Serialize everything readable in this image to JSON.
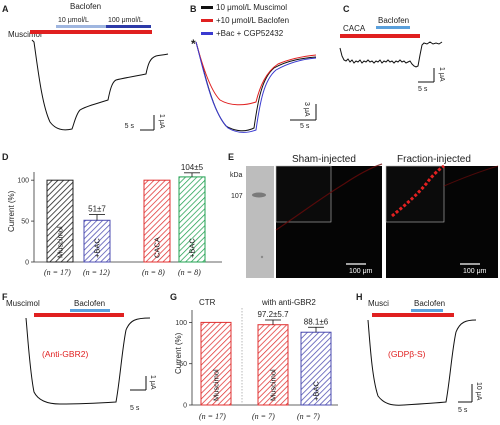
{
  "panels": {
    "A": {
      "label": "A",
      "title": "Baclofen",
      "muscimol_label": "Muscimol",
      "conc1_label": "10 μmol/L",
      "conc2_label": "100 μmol/L",
      "scale_time": "5 s",
      "scale_current": "1 μA"
    },
    "B": {
      "label": "B",
      "asterisk": "*",
      "legend": [
        "10 μmol/L Muscimol",
        "+10 μmol/L Baclofen",
        "+Bac + CGP52432"
      ],
      "colors": [
        "#111111",
        "#e02020",
        "#3a3ad0"
      ],
      "scale_time": "5 s",
      "scale_current": "3 μA"
    },
    "C": {
      "label": "C",
      "caca_label": "CACA",
      "baclofen_label": "Baclofen",
      "scale_time": "5 s",
      "scale_current": "1 μA"
    },
    "D": {
      "label": "D",
      "ylabel": "Current (%)",
      "yticks": [
        "100",
        "50",
        "0"
      ],
      "n_labels": [
        "(n = 17)",
        "(n = 12)",
        "(n = 8)",
        "(n = 8)"
      ]
    },
    "E": {
      "label": "E",
      "kda": "kDa",
      "mw": "107",
      "sham_title": "Sham-injected",
      "fraction_title": "Fraction-injected",
      "scale1": "100 μm",
      "scale2": "100 μm"
    },
    "F": {
      "label": "F",
      "muscimol_label": "Muscimol",
      "baclofen_label": "Baclofen",
      "annotation": "(Anti-GBR2)",
      "scale_time": "5 s",
      "scale_current": "1 μA"
    },
    "G": {
      "label": "G",
      "ctr_label": "CTR",
      "with_label": "with anti-GBR2",
      "ylabel": "Current (%)",
      "yticks": [
        "100",
        "50",
        "0"
      ],
      "n_labels": [
        "(n = 17)",
        "(n = 7)",
        "(n = 7)"
      ]
    },
    "H": {
      "label": "H",
      "musci_label": "Musci",
      "baclofen_label": "Baclofen",
      "annotation": "(GDPβ-S)",
      "scale_time": "5 s",
      "scale_current": "10 μA"
    }
  },
  "chart_data": [
    {
      "panel": "D",
      "type": "bar",
      "ylabel": "Current (%)",
      "ylim": [
        0,
        110
      ],
      "categories": [
        "Muscimol",
        "+BAC",
        "CACA",
        "+BAC"
      ],
      "values": [
        100,
        51,
        100,
        104
      ],
      "errors": [
        0,
        7,
        0,
        5
      ],
      "value_labels": [
        "",
        "51±7",
        "",
        "104±5"
      ],
      "colors": [
        "#222222",
        "#4b4bb0",
        "#e03030",
        "#20a050"
      ]
    },
    {
      "panel": "G",
      "type": "bar",
      "ylabel": "Current (%)",
      "ylim": [
        0,
        115
      ],
      "categories": [
        "Muscimol",
        "Muscimol",
        "+BAC"
      ],
      "values": [
        100,
        97.2,
        88.1
      ],
      "errors": [
        0,
        5.7,
        6
      ],
      "value_labels": [
        "",
        "97.2±5.7",
        "88.1±6"
      ],
      "colors": [
        "#e03030",
        "#e03030",
        "#4b4bb0"
      ]
    }
  ]
}
